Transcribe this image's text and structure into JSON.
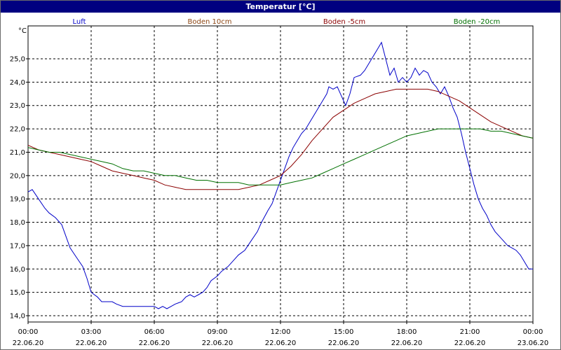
{
  "window": {
    "title": "Temperatur [°C]"
  },
  "chart_data": {
    "type": "line",
    "title": "Temperatur [°C]",
    "ylabel": "°C",
    "xlabel": "",
    "ylim": [
      13.8,
      26.0
    ],
    "yticks": [
      14.0,
      15.0,
      16.0,
      17.0,
      18.0,
      19.0,
      20.0,
      21.0,
      22.0,
      23.0,
      24.0,
      25.0
    ],
    "yticks_labels": [
      "14,0",
      "15,0",
      "16,0",
      "17,0",
      "18,0",
      "19,0",
      "20,0",
      "21,0",
      "22,0",
      "23,0",
      "24,0",
      "25,0"
    ],
    "xlim": [
      0,
      24
    ],
    "xticks": [
      {
        "x": 0,
        "time": "00:00",
        "date": "22.06.20"
      },
      {
        "x": 3,
        "time": "03:00",
        "date": "22.06.20"
      },
      {
        "x": 6,
        "time": "06:00",
        "date": "22.06.20"
      },
      {
        "x": 9,
        "time": "09:00",
        "date": "22.06.20"
      },
      {
        "x": 12,
        "time": "12:00",
        "date": "22.06.20"
      },
      {
        "x": 15,
        "time": "15:00",
        "date": "22.06.20"
      },
      {
        "x": 18,
        "time": "18:00",
        "date": "22.06.20"
      },
      {
        "x": 21,
        "time": "21:00",
        "date": "22.06.20"
      },
      {
        "x": 24,
        "time": "00:00",
        "date": "23.06.20"
      }
    ],
    "grid": true,
    "legend_position": "top",
    "series": [
      {
        "name": "Luft",
        "color": "#0000c8",
        "points": [
          [
            0,
            19.3
          ],
          [
            0.2,
            19.4
          ],
          [
            0.5,
            19.0
          ],
          [
            0.8,
            18.6
          ],
          [
            1.0,
            18.4
          ],
          [
            1.3,
            18.2
          ],
          [
            1.6,
            17.9
          ],
          [
            1.8,
            17.4
          ],
          [
            2.0,
            16.9
          ],
          [
            2.3,
            16.5
          ],
          [
            2.6,
            16.1
          ],
          [
            2.8,
            15.6
          ],
          [
            3.0,
            15.0
          ],
          [
            3.3,
            14.8
          ],
          [
            3.5,
            14.6
          ],
          [
            4.0,
            14.6
          ],
          [
            4.2,
            14.5
          ],
          [
            4.5,
            14.4
          ],
          [
            5.0,
            14.4
          ],
          [
            5.5,
            14.4
          ],
          [
            6.0,
            14.4
          ],
          [
            6.2,
            14.3
          ],
          [
            6.4,
            14.4
          ],
          [
            6.6,
            14.3
          ],
          [
            6.8,
            14.4
          ],
          [
            7.0,
            14.5
          ],
          [
            7.3,
            14.6
          ],
          [
            7.5,
            14.8
          ],
          [
            7.7,
            14.9
          ],
          [
            7.9,
            14.8
          ],
          [
            8.1,
            14.9
          ],
          [
            8.3,
            15.0
          ],
          [
            8.5,
            15.2
          ],
          [
            8.7,
            15.5
          ],
          [
            9.0,
            15.7
          ],
          [
            9.2,
            15.9
          ],
          [
            9.5,
            16.1
          ],
          [
            9.8,
            16.4
          ],
          [
            10.0,
            16.6
          ],
          [
            10.3,
            16.8
          ],
          [
            10.6,
            17.2
          ],
          [
            10.9,
            17.6
          ],
          [
            11.1,
            18.0
          ],
          [
            11.4,
            18.5
          ],
          [
            11.6,
            18.8
          ],
          [
            11.8,
            19.3
          ],
          [
            12.0,
            19.8
          ],
          [
            12.2,
            20.3
          ],
          [
            12.4,
            20.8
          ],
          [
            12.6,
            21.2
          ],
          [
            12.8,
            21.5
          ],
          [
            13.0,
            21.8
          ],
          [
            13.2,
            22.0
          ],
          [
            13.4,
            22.3
          ],
          [
            13.6,
            22.6
          ],
          [
            13.8,
            22.9
          ],
          [
            14.0,
            23.2
          ],
          [
            14.2,
            23.5
          ],
          [
            14.3,
            23.8
          ],
          [
            14.5,
            23.7
          ],
          [
            14.7,
            23.8
          ],
          [
            14.9,
            23.4
          ],
          [
            15.1,
            23.0
          ],
          [
            15.3,
            23.5
          ],
          [
            15.5,
            24.2
          ],
          [
            15.8,
            24.3
          ],
          [
            16.0,
            24.5
          ],
          [
            16.2,
            24.8
          ],
          [
            16.4,
            25.1
          ],
          [
            16.6,
            25.4
          ],
          [
            16.8,
            25.7
          ],
          [
            17.0,
            25.0
          ],
          [
            17.2,
            24.3
          ],
          [
            17.4,
            24.6
          ],
          [
            17.6,
            24.0
          ],
          [
            17.8,
            24.2
          ],
          [
            18.0,
            24.0
          ],
          [
            18.2,
            24.2
          ],
          [
            18.4,
            24.6
          ],
          [
            18.6,
            24.3
          ],
          [
            18.8,
            24.5
          ],
          [
            19.0,
            24.4
          ],
          [
            19.2,
            24.0
          ],
          [
            19.4,
            23.8
          ],
          [
            19.6,
            23.5
          ],
          [
            19.8,
            23.8
          ],
          [
            20.0,
            23.4
          ],
          [
            20.2,
            22.9
          ],
          [
            20.4,
            22.5
          ],
          [
            20.6,
            21.8
          ],
          [
            20.8,
            21.0
          ],
          [
            21.0,
            20.3
          ],
          [
            21.2,
            19.6
          ],
          [
            21.4,
            19.0
          ],
          [
            21.6,
            18.6
          ],
          [
            21.8,
            18.3
          ],
          [
            22.0,
            17.9
          ],
          [
            22.2,
            17.6
          ],
          [
            22.4,
            17.4
          ],
          [
            22.6,
            17.2
          ],
          [
            22.8,
            17.0
          ],
          [
            23.0,
            16.9
          ],
          [
            23.2,
            16.8
          ],
          [
            23.4,
            16.6
          ],
          [
            23.6,
            16.3
          ],
          [
            23.8,
            16.0
          ],
          [
            24.0,
            16.0
          ]
        ]
      },
      {
        "name": "Boden 10cm",
        "color": "#8b0000",
        "points": [
          [
            0,
            21.3
          ],
          [
            0.5,
            21.1
          ],
          [
            1.0,
            21.0
          ],
          [
            1.5,
            20.9
          ],
          [
            2.0,
            20.8
          ],
          [
            2.5,
            20.7
          ],
          [
            3.0,
            20.6
          ],
          [
            3.5,
            20.4
          ],
          [
            4.0,
            20.2
          ],
          [
            4.5,
            20.1
          ],
          [
            5.0,
            20.0
          ],
          [
            5.5,
            19.9
          ],
          [
            6.0,
            19.8
          ],
          [
            6.5,
            19.6
          ],
          [
            7.0,
            19.5
          ],
          [
            7.5,
            19.4
          ],
          [
            8.0,
            19.4
          ],
          [
            8.5,
            19.4
          ],
          [
            9.0,
            19.4
          ],
          [
            9.5,
            19.4
          ],
          [
            10.0,
            19.4
          ],
          [
            10.5,
            19.5
          ],
          [
            11.0,
            19.6
          ],
          [
            11.5,
            19.8
          ],
          [
            12.0,
            20.0
          ],
          [
            12.5,
            20.4
          ],
          [
            13.0,
            20.9
          ],
          [
            13.5,
            21.5
          ],
          [
            14.0,
            22.0
          ],
          [
            14.5,
            22.5
          ],
          [
            15.0,
            22.8
          ],
          [
            15.5,
            23.1
          ],
          [
            16.0,
            23.3
          ],
          [
            16.5,
            23.5
          ],
          [
            17.0,
            23.6
          ],
          [
            17.5,
            23.7
          ],
          [
            18.0,
            23.7
          ],
          [
            18.5,
            23.7
          ],
          [
            19.0,
            23.7
          ],
          [
            19.5,
            23.6
          ],
          [
            20.0,
            23.4
          ],
          [
            20.5,
            23.2
          ],
          [
            21.0,
            22.9
          ],
          [
            21.5,
            22.6
          ],
          [
            22.0,
            22.3
          ],
          [
            22.5,
            22.1
          ],
          [
            23.0,
            21.9
          ],
          [
            23.5,
            21.7
          ],
          [
            24.0,
            21.6
          ]
        ]
      },
      {
        "name": "Boden -5cm",
        "points": []
      },
      {
        "name": "Boden -20cm",
        "color": "#007000",
        "points": [
          [
            0,
            21.2
          ],
          [
            0.5,
            21.1
          ],
          [
            1.0,
            21.0
          ],
          [
            1.5,
            21.0
          ],
          [
            2.0,
            20.9
          ],
          [
            2.5,
            20.8
          ],
          [
            3.0,
            20.7
          ],
          [
            3.5,
            20.6
          ],
          [
            4.0,
            20.5
          ],
          [
            4.5,
            20.3
          ],
          [
            5.0,
            20.2
          ],
          [
            5.5,
            20.2
          ],
          [
            6.0,
            20.1
          ],
          [
            6.5,
            20.0
          ],
          [
            7.0,
            20.0
          ],
          [
            7.5,
            19.9
          ],
          [
            8.0,
            19.8
          ],
          [
            8.5,
            19.8
          ],
          [
            9.0,
            19.7
          ],
          [
            9.5,
            19.7
          ],
          [
            10.0,
            19.7
          ],
          [
            10.5,
            19.6
          ],
          [
            11.0,
            19.6
          ],
          [
            11.5,
            19.6
          ],
          [
            12.0,
            19.6
          ],
          [
            12.5,
            19.7
          ],
          [
            13.0,
            19.8
          ],
          [
            13.5,
            19.9
          ],
          [
            14.0,
            20.1
          ],
          [
            14.5,
            20.3
          ],
          [
            15.0,
            20.5
          ],
          [
            15.5,
            20.7
          ],
          [
            16.0,
            20.9
          ],
          [
            16.5,
            21.1
          ],
          [
            17.0,
            21.3
          ],
          [
            17.5,
            21.5
          ],
          [
            18.0,
            21.7
          ],
          [
            18.5,
            21.8
          ],
          [
            19.0,
            21.9
          ],
          [
            19.5,
            22.0
          ],
          [
            20.0,
            22.0
          ],
          [
            20.5,
            22.0
          ],
          [
            21.0,
            22.0
          ],
          [
            21.5,
            22.0
          ],
          [
            22.0,
            21.9
          ],
          [
            22.5,
            21.9
          ],
          [
            23.0,
            21.8
          ],
          [
            23.5,
            21.7
          ],
          [
            24.0,
            21.6
          ]
        ]
      }
    ]
  },
  "legend_colors": [
    "#0000c8",
    "#8b4513",
    "#8b0000",
    "#007000"
  ],
  "colors": {
    "title_bar": "#000080",
    "grid": "#000000"
  }
}
